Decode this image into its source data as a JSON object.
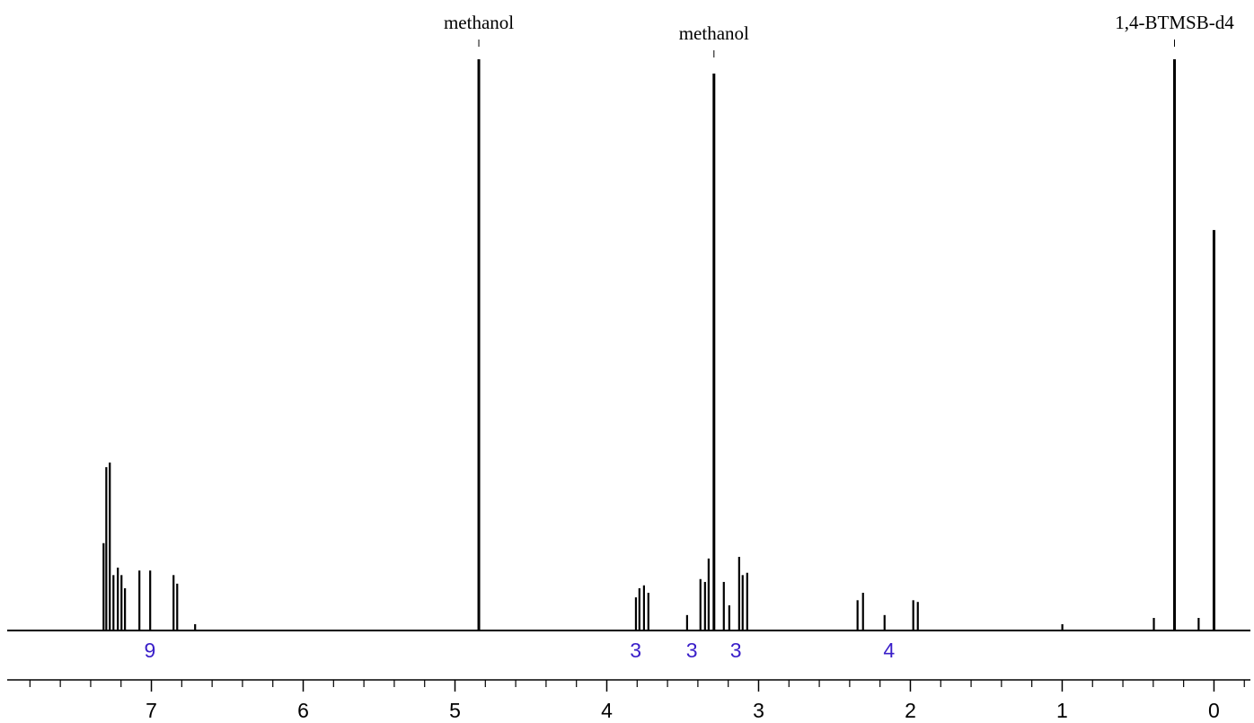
{
  "chart_data": {
    "type": "spectrum",
    "color": "#000000",
    "x": [
      7.315,
      7.297,
      7.274,
      7.25,
      7.221,
      7.197,
      7.174,
      7.079,
      7.008,
      6.854,
      6.83,
      6.712,
      4.843,
      3.808,
      3.785,
      3.755,
      3.726,
      3.471,
      3.383,
      3.353,
      3.329,
      3.294,
      3.229,
      3.193,
      3.128,
      3.105,
      3.075,
      2.348,
      2.312,
      2.17,
      1.981,
      1.951,
      0.999,
      0.396,
      0.26,
      0.101,
      0.0
    ],
    "values": [
      15.3,
      28.6,
      29.4,
      9.7,
      11.0,
      9.7,
      7.4,
      10.5,
      10.5,
      9.7,
      8.2,
      1.1,
      100,
      5.8,
      7.4,
      7.9,
      6.6,
      2.7,
      9.0,
      8.5,
      12.6,
      97.5,
      8.5,
      4.4,
      12.9,
      9.7,
      10.1,
      5.3,
      6.6,
      2.7,
      5.3,
      5.0,
      1.1,
      2.2,
      100,
      2.2,
      70.1
    ],
    "xlim": [
      7.95,
      -0.24
    ],
    "ylim": [
      0,
      100
    ],
    "xticks": [
      7,
      6,
      5,
      4,
      3,
      2,
      1,
      0
    ],
    "annotations": [
      {
        "text": "methanol",
        "x": 4.843
      },
      {
        "text": "methanol",
        "x": 3.294
      },
      {
        "text": "1,4-BTMSB-d4",
        "x": 0.26
      }
    ],
    "integrals": {
      "color": "#3a1fc9",
      "items": [
        {
          "x": 7.01,
          "value": 9
        },
        {
          "x": 3.81,
          "value": 3
        },
        {
          "x": 3.44,
          "value": 3
        },
        {
          "x": 3.15,
          "value": 3
        },
        {
          "x": 2.14,
          "value": 4
        }
      ]
    }
  }
}
